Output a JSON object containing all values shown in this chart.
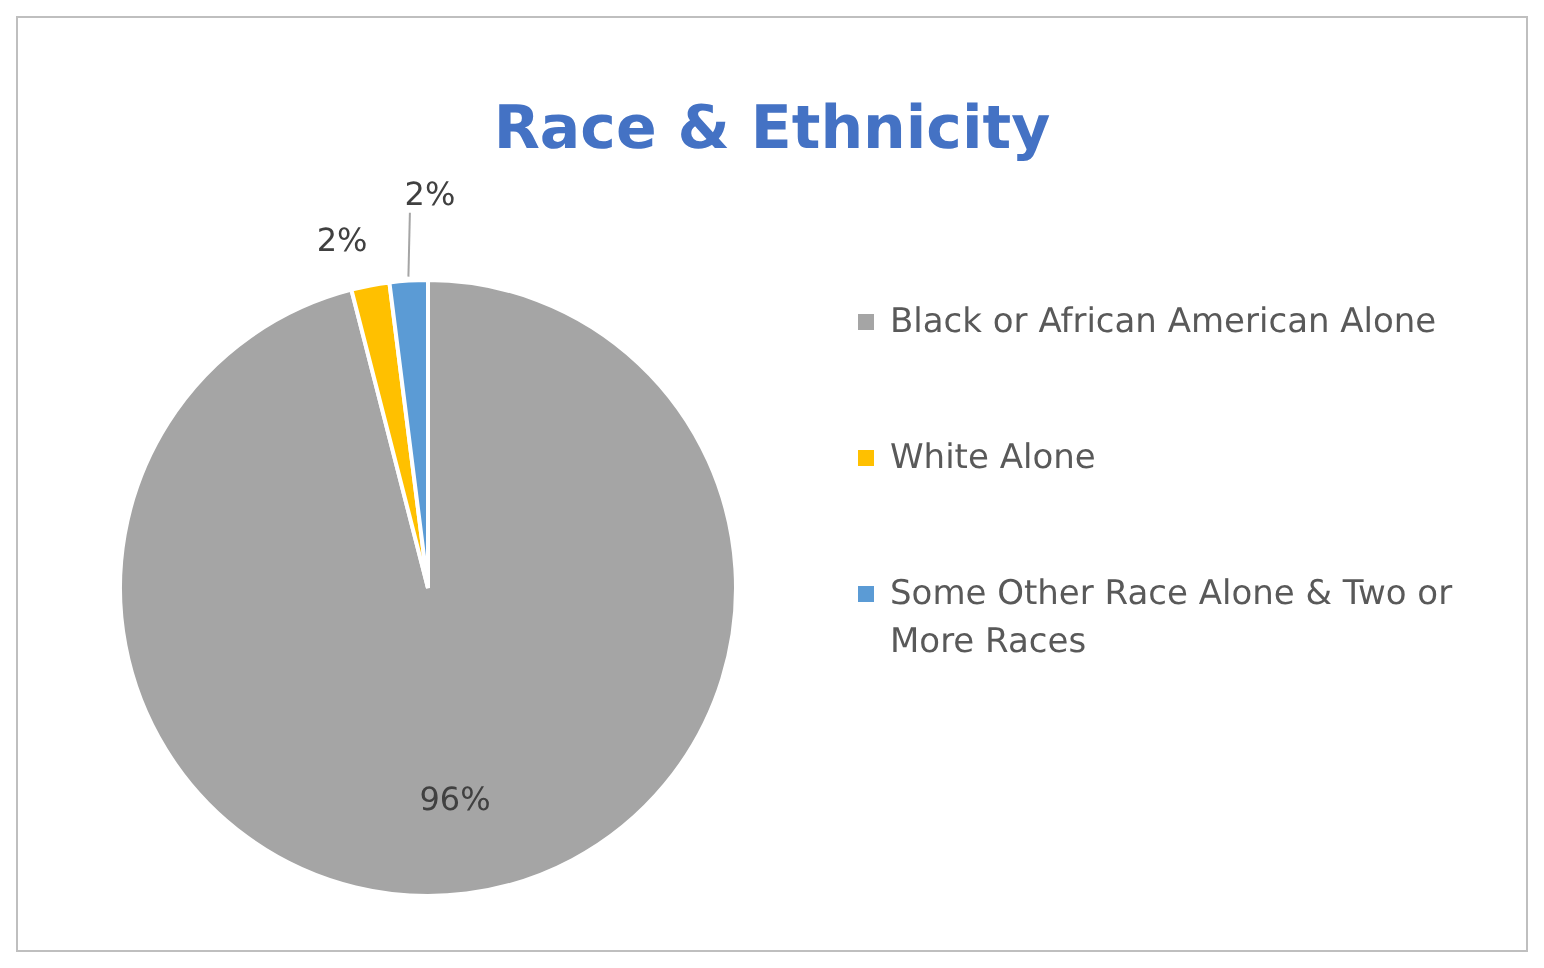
{
  "chart_data": {
    "type": "pie",
    "title": "Race & Ethnicity",
    "categories": [
      "Black or African American Alone",
      "White Alone",
      "Some Other Race Alone & Two or More Races"
    ],
    "values": [
      96,
      2,
      2
    ],
    "colors": [
      "#a5a5a5",
      "#ffc000",
      "#5b9bd5"
    ],
    "value_labels": [
      "96%",
      "2%",
      "2%"
    ],
    "legend": "right"
  }
}
